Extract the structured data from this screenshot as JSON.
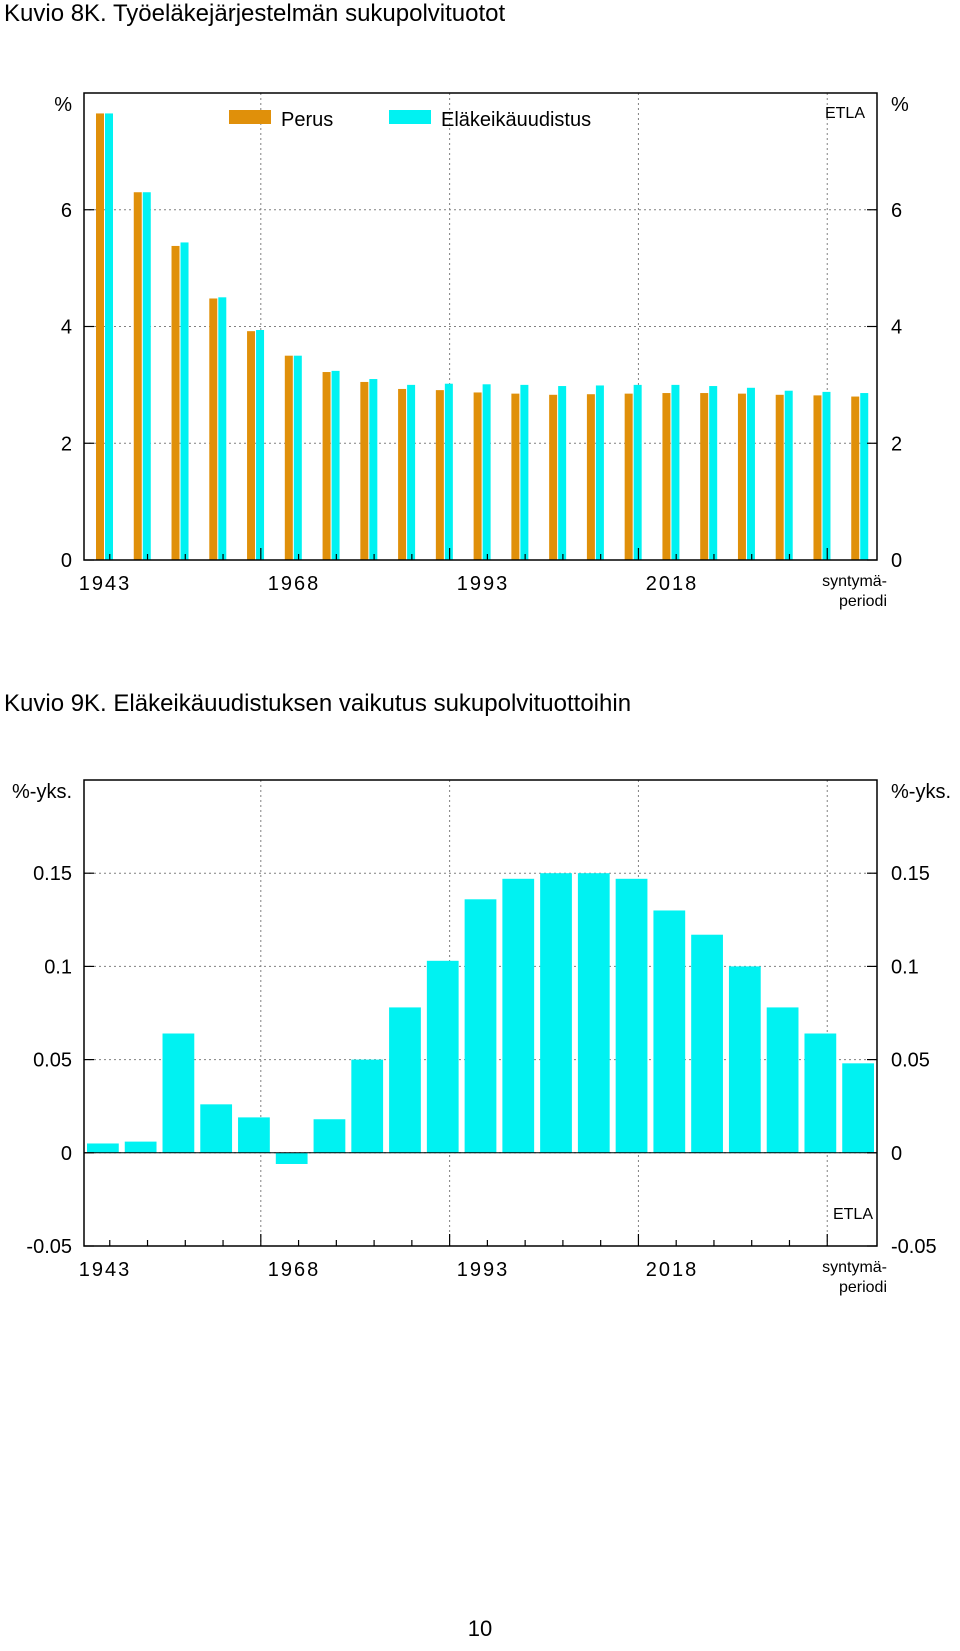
{
  "page_number": "10",
  "colors": {
    "perus": "#e0900a",
    "uudistus": "#00f2f2",
    "grid": "#808080"
  },
  "chart_data": [
    {
      "type": "bar",
      "title": "Kuvio 8K. Työeläkejärjestelmän sukupolvituotot",
      "ylabel_left": "%",
      "ylabel_right": "%",
      "xlabel_line1": "syntymä-",
      "xlabel_line2": "periodi",
      "source": "ETLA",
      "ylim": [
        0,
        8
      ],
      "yticks": [
        0,
        2,
        4,
        6
      ],
      "ytick_labels": [
        "0",
        "2",
        "4",
        "6"
      ],
      "xtick_labels": [
        "1943",
        "1968",
        "1993",
        "2018"
      ],
      "legend_placement": "top",
      "grid": true,
      "series": [
        {
          "name": "Perus",
          "values": [
            7.65,
            6.3,
            5.38,
            4.48,
            3.92,
            3.5,
            3.22,
            3.05,
            2.93,
            2.91,
            2.87,
            2.85,
            2.83,
            2.84,
            2.85,
            2.86,
            2.86,
            2.85,
            2.83,
            2.82,
            2.8
          ]
        },
        {
          "name": "Eläkeikäuudistus",
          "values": [
            7.65,
            6.3,
            5.44,
            4.5,
            3.94,
            3.5,
            3.24,
            3.1,
            3.0,
            3.02,
            3.01,
            3.0,
            2.98,
            2.99,
            3.0,
            3.0,
            2.98,
            2.95,
            2.9,
            2.88,
            2.86
          ]
        }
      ]
    },
    {
      "type": "bar",
      "title": "Kuvio 9K. Eläkeikäuudistuksen vaikutus sukupolvituottoihin",
      "ylabel_left": "%-yks.",
      "ylabel_right": "%-yks.",
      "xlabel_line1": "syntymä-",
      "xlabel_line2": "periodi",
      "source": "ETLA",
      "ylim": [
        -0.05,
        0.2
      ],
      "yticks": [
        -0.05,
        0,
        0.05,
        0.1,
        0.15
      ],
      "ytick_labels": [
        "-0.05",
        "0",
        "0.05",
        "0.1",
        "0.15"
      ],
      "xtick_labels": [
        "1943",
        "1968",
        "1993",
        "2018"
      ],
      "grid": true,
      "series": [
        {
          "values": [
            0.005,
            0.006,
            0.064,
            0.026,
            0.019,
            -0.006,
            0.018,
            0.05,
            0.078,
            0.103,
            0.136,
            0.147,
            0.15,
            0.15,
            0.147,
            0.13,
            0.117,
            0.1,
            0.078,
            0.064,
            0.048
          ]
        }
      ]
    }
  ]
}
